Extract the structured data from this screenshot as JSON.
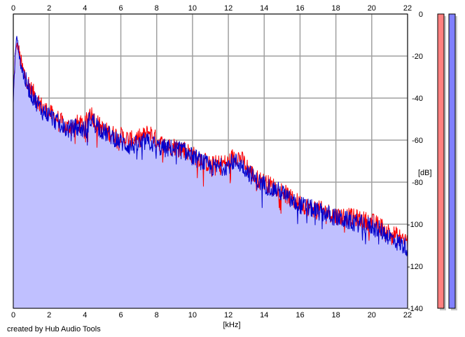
{
  "credit": "created by Hub Audio Tools",
  "chart_data": {
    "type": "area",
    "xlabel": "[kHz]",
    "ylabel": "[dB]",
    "xlim": [
      0,
      22
    ],
    "ylim": [
      -140,
      0
    ],
    "x_ticks": [
      0,
      2,
      4,
      6,
      8,
      10,
      12,
      14,
      16,
      18,
      20,
      22
    ],
    "y_ticks": [
      0,
      -20,
      -40,
      -60,
      -80,
      -100,
      -120,
      -140
    ],
    "grid": true,
    "fill_color": "#c0c0ff",
    "series": [
      {
        "color": "#ff0000",
        "x": [
          0,
          0.1,
          0.2,
          0.3,
          0.5,
          0.7,
          1,
          1.3,
          1.6,
          2,
          2.5,
          3,
          3.5,
          4,
          4.3,
          4.5,
          5,
          5.5,
          6,
          6.5,
          7,
          7.3,
          7.6,
          8,
          8.5,
          9,
          9.5,
          10,
          10.5,
          11,
          11.5,
          12,
          12.3,
          12.6,
          13,
          13.5,
          14,
          14.5,
          15,
          15.5,
          16,
          16.5,
          17,
          17.5,
          18,
          18.5,
          19,
          19.5,
          20,
          20.5,
          21,
          21.5,
          22
        ],
        "values": [
          -40,
          -20,
          -14,
          -18,
          -26,
          -30,
          -36,
          -40,
          -44,
          -47,
          -50,
          -54,
          -52,
          -53,
          -46,
          -50,
          -55,
          -57,
          -58,
          -60,
          -59,
          -58,
          -56,
          -60,
          -63,
          -63,
          -64,
          -67,
          -69,
          -72,
          -71,
          -71,
          -67,
          -68,
          -72,
          -78,
          -80,
          -82,
          -84,
          -88,
          -90,
          -92,
          -93,
          -94,
          -96,
          -96,
          -97,
          -98,
          -99,
          -101,
          -104,
          -106,
          -108
        ]
      },
      {
        "color": "#0000cc",
        "x": [
          0,
          0.1,
          0.2,
          0.3,
          0.5,
          0.7,
          1,
          1.3,
          1.6,
          2,
          2.5,
          3,
          3.5,
          4,
          4.3,
          4.5,
          5,
          5.5,
          6,
          6.5,
          7,
          7.3,
          7.6,
          8,
          8.5,
          9,
          9.5,
          10,
          10.5,
          11,
          11.5,
          12,
          12.3,
          12.6,
          13,
          13.5,
          14,
          14.5,
          15,
          15.5,
          16,
          16.5,
          17,
          17.5,
          18,
          18.5,
          19,
          19.5,
          20,
          20.5,
          21,
          21.5,
          22
        ],
        "values": [
          -42,
          -18,
          -11,
          -17,
          -27,
          -32,
          -38,
          -42,
          -46,
          -48,
          -52,
          -55,
          -54,
          -55,
          -50,
          -51,
          -56,
          -58,
          -61,
          -63,
          -62,
          -61,
          -61,
          -63,
          -64,
          -64,
          -65,
          -68,
          -70,
          -73,
          -73,
          -72,
          -70,
          -71,
          -74,
          -79,
          -81,
          -83,
          -85,
          -89,
          -91,
          -92,
          -94,
          -95,
          -97,
          -98,
          -99,
          -100,
          -101,
          -103,
          -106,
          -109,
          -111
        ]
      }
    ],
    "level_meters": [
      {
        "color": "#ff8080"
      },
      {
        "color": "#8080ff"
      }
    ]
  }
}
